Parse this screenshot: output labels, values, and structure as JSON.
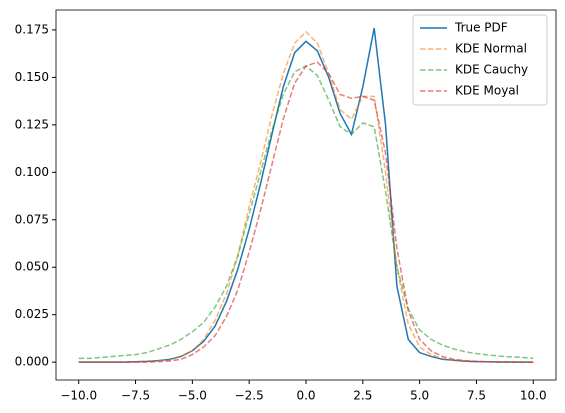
{
  "chart_data": {
    "type": "line",
    "x": [
      -10,
      -9.5,
      -9,
      -8.5,
      -8,
      -7.5,
      -7,
      -6.5,
      -6,
      -5.5,
      -5,
      -4.5,
      -4,
      -3.5,
      -3,
      -2.5,
      -2,
      -1.5,
      -1,
      -0.5,
      0,
      0.5,
      1,
      1.5,
      2,
      2.5,
      3,
      3.5,
      4,
      4.5,
      5,
      5.5,
      6,
      6.5,
      7,
      7.5,
      8,
      8.5,
      9,
      9.5,
      10
    ],
    "series": [
      {
        "name": "True PDF",
        "color": "#1f77b4",
        "linestyle": "solid",
        "alpha": 1,
        "values": [
          0,
          0,
          0,
          0,
          0,
          0.0002,
          0.0004,
          0.0008,
          0.0015,
          0.003,
          0.006,
          0.011,
          0.019,
          0.032,
          0.049,
          0.07,
          0.094,
          0.12,
          0.145,
          0.163,
          0.169,
          0.164,
          0.15,
          0.131,
          0.12,
          0.145,
          0.176,
          0.125,
          0.04,
          0.012,
          0.005,
          0.003,
          0.0015,
          0.001,
          0.0005,
          0.0003,
          0.0002,
          0.0001,
          0.0001,
          0,
          0
        ]
      },
      {
        "name": "KDE Normal",
        "color": "#ff7f0e",
        "linestyle": "dashed",
        "alpha": 0.6,
        "values": [
          0,
          0,
          0,
          0,
          0,
          0.0002,
          0.0004,
          0.0008,
          0.001,
          0.003,
          0.006,
          0.012,
          0.022,
          0.036,
          0.056,
          0.082,
          0.105,
          0.13,
          0.152,
          0.168,
          0.174,
          0.168,
          0.152,
          0.133,
          0.128,
          0.14,
          0.14,
          0.1,
          0.05,
          0.02,
          0.008,
          0.004,
          0.002,
          0.001,
          0.0005,
          0.0003,
          0.0002,
          0.0001,
          0.0001,
          0,
          0
        ]
      },
      {
        "name": "KDE Cauchy",
        "color": "#2ca02c",
        "linestyle": "dashed",
        "alpha": 0.6,
        "values": [
          0.002,
          0.002,
          0.0025,
          0.003,
          0.0035,
          0.004,
          0.005,
          0.007,
          0.009,
          0.012,
          0.016,
          0.021,
          0.029,
          0.04,
          0.056,
          0.078,
          0.1,
          0.122,
          0.141,
          0.153,
          0.156,
          0.151,
          0.138,
          0.124,
          0.12,
          0.126,
          0.124,
          0.09,
          0.05,
          0.028,
          0.017,
          0.012,
          0.009,
          0.007,
          0.0055,
          0.0045,
          0.0038,
          0.0032,
          0.0028,
          0.0025,
          0.002
        ]
      },
      {
        "name": "KDE Moyal",
        "color": "#d62728",
        "linestyle": "dashed",
        "alpha": 0.6,
        "values": [
          0,
          0,
          0,
          0,
          0,
          0,
          0,
          0.0003,
          0.0006,
          0.0015,
          0.004,
          0.008,
          0.014,
          0.024,
          0.038,
          0.058,
          0.08,
          0.104,
          0.128,
          0.147,
          0.156,
          0.158,
          0.152,
          0.141,
          0.139,
          0.14,
          0.138,
          0.11,
          0.06,
          0.027,
          0.012,
          0.006,
          0.003,
          0.0015,
          0.0008,
          0.0004,
          0.0002,
          0.0001,
          0.0001,
          0,
          0
        ]
      }
    ],
    "xlim": [
      -11,
      11
    ],
    "ylim": [
      -0.0094,
      0.1855
    ],
    "xticks": [
      {
        "value": -10,
        "label": "−10.0"
      },
      {
        "value": -7.5,
        "label": "−7.5"
      },
      {
        "value": -5,
        "label": "−5.0"
      },
      {
        "value": -2.5,
        "label": "−2.5"
      },
      {
        "value": 0,
        "label": "0.0"
      },
      2.5,
      {
        "value": 5,
        "label": "5.0"
      },
      7.5,
      {
        "value": 10,
        "label": "10.0"
      }
    ],
    "yticks": [
      {
        "value": 0,
        "label": "0.000"
      },
      {
        "value": 0.025,
        "label": "0.025"
      },
      {
        "value": 0.05,
        "label": "0.050"
      },
      {
        "value": 0.075,
        "label": "0.075"
      },
      {
        "value": 0.1,
        "label": "0.100"
      },
      {
        "value": 0.125,
        "label": "0.125"
      },
      {
        "value": 0.15,
        "label": "0.150"
      },
      {
        "value": 0.175,
        "label": "0.175"
      }
    ],
    "legend": "upper right"
  }
}
